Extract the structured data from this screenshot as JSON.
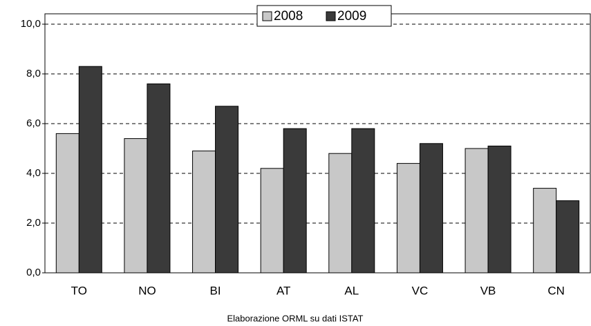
{
  "chart_data": {
    "type": "bar",
    "annotation": "Elaborazione ORML su dati ISTAT",
    "categories": [
      "TO",
      "NO",
      "BI",
      "AT",
      "AL",
      "VC",
      "VB",
      "CN"
    ],
    "series": [
      {
        "name": "2008",
        "color": "#c8c8c8",
        "values": [
          5.6,
          5.4,
          4.9,
          4.2,
          4.8,
          4.4,
          5.0,
          3.4
        ]
      },
      {
        "name": "2009",
        "color": "#3a3a3a",
        "values": [
          8.3,
          7.6,
          6.7,
          5.8,
          5.8,
          5.2,
          5.1,
          2.9
        ]
      }
    ],
    "ylim": [
      0,
      10
    ],
    "yticks": [
      {
        "value": 0,
        "label": "0,0"
      },
      {
        "value": 2,
        "label": "2,0"
      },
      {
        "value": 4,
        "label": "4,0"
      },
      {
        "value": 6,
        "label": "6,0"
      },
      {
        "value": 8,
        "label": "8,0"
      },
      {
        "value": 10,
        "label": "10,0"
      }
    ],
    "grid": true,
    "legend": "top"
  }
}
